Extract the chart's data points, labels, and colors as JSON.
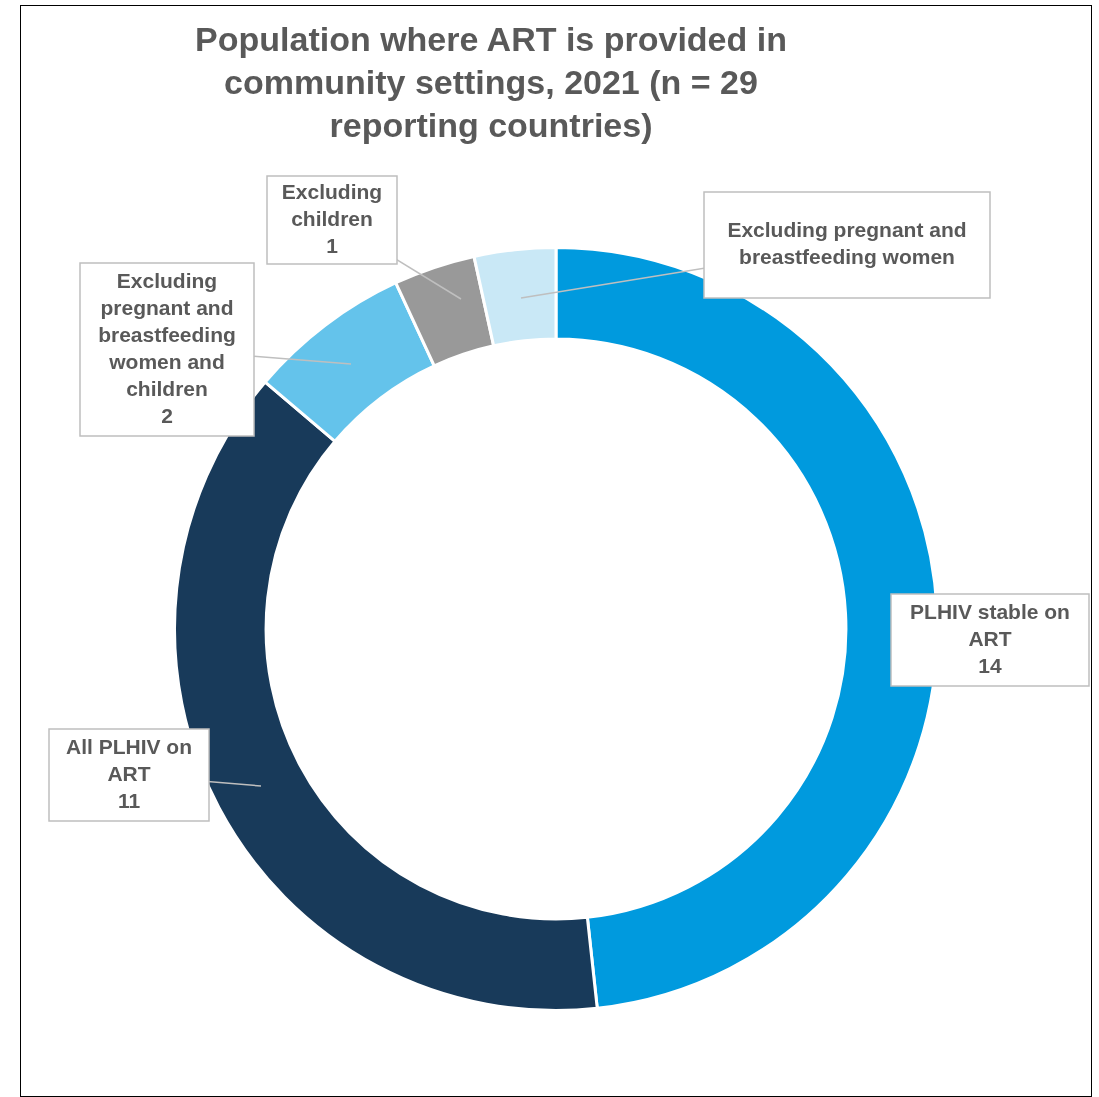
{
  "chart_data": {
    "type": "donut",
    "title": "Population where ART is provided in community settings, 2021 (n = 29 reporting countries)",
    "categories": [
      "PLHIV stable on ART",
      "All PLHIV on ART",
      "Excluding pregnant and breastfeeding women and children",
      "Excluding children",
      "Excluding pregnant and breastfeeding women"
    ],
    "values": [
      14,
      11,
      2,
      1,
      1
    ],
    "value_labels": [
      "14",
      "11",
      "2",
      "1",
      null
    ],
    "colors": [
      "#009ade",
      "#183a5a",
      "#64c3eb",
      "#999999",
      "#c9e8f6"
    ],
    "legend": false
  }
}
